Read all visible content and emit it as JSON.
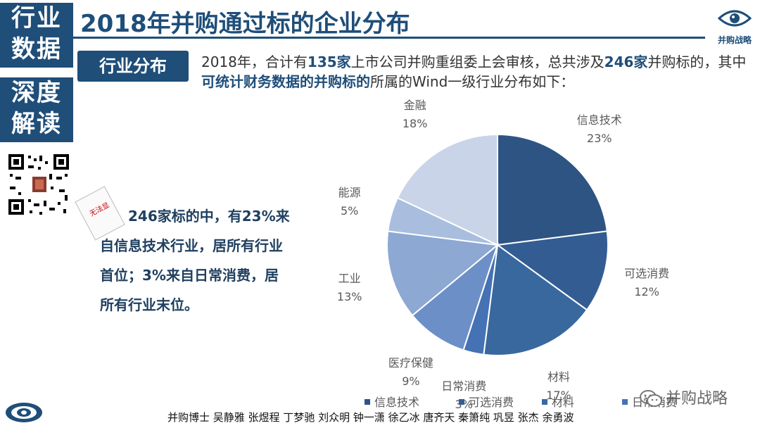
{
  "sidebar": {
    "block1": [
      "行业",
      "数据"
    ],
    "block2": [
      "深度",
      "解读"
    ]
  },
  "header": {
    "title": "2018年并购通过标的企业分布",
    "logo_text": "并购战略"
  },
  "section": {
    "label": "行业分布",
    "intro": {
      "p1": "2018年，合计有",
      "b1": "135家",
      "p2": "上市公司并购重组委上会审核，总共涉及",
      "b2": "246家",
      "p3": "并购标的，其中",
      "b3": "可统计财务数据的并购标的",
      "p4": "所属的Wind一级行业分布如下："
    }
  },
  "doc_stamp": "无法显",
  "insight": {
    "line1": "246家标的中，有23%来",
    "line2": "自信息技术行业，居所有行业",
    "line3": "首位；3%来自日常消费，居",
    "line4": "所有行业末位。"
  },
  "chart_data": {
    "type": "pie",
    "categories": [
      "信息技术",
      "可选消费",
      "材料",
      "日常消费",
      "医疗保健",
      "工业",
      "能源",
      "金融"
    ],
    "values": [
      23,
      12,
      17,
      3,
      9,
      13,
      5,
      18
    ],
    "value_labels": [
      "23%",
      "12%",
      "17%",
      "3%",
      "9%",
      "13%",
      "5%",
      "18%"
    ],
    "colors": [
      "#2e5483",
      "#335d92",
      "#39689f",
      "#4472b4",
      "#6d8fc7",
      "#8ca8d3",
      "#a9bede",
      "#c9d4e8"
    ],
    "legend": [
      "信息技术",
      "可选消费",
      "材料",
      "日常消费"
    ],
    "legend_placement": "bottom"
  },
  "footer": {
    "credits": "并购博士 吴静雅 张煜程 丁梦驰 刘众明 钟一潇 徐乙冰 唐齐天 秦箫纯 巩昱 张杰 余勇波",
    "wechat": "并购战略"
  }
}
